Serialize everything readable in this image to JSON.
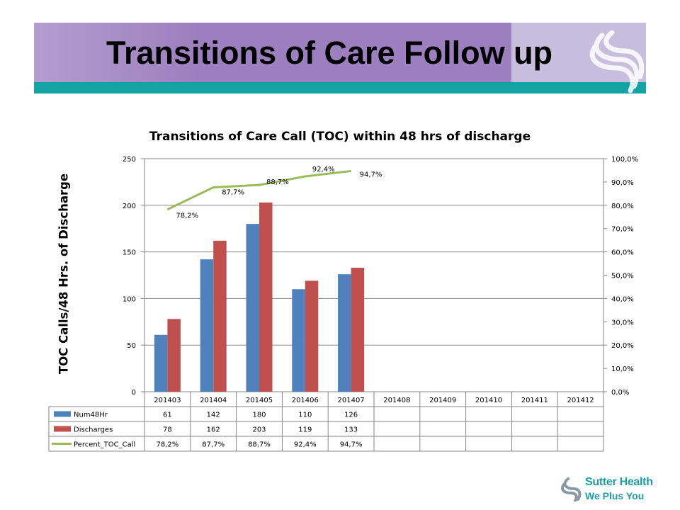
{
  "slide": {
    "title": "Transitions of Care Follow up"
  },
  "brand": {
    "name": "Sutter Health",
    "tagline": "We Plus You"
  },
  "chart_data": {
    "type": "bar",
    "title": "Transitions of Care Call (TOC) within 48 hrs of discharge",
    "ylabel": "TOC Calls/48 Hrs. of Discharge",
    "ylim": [
      0,
      250
    ],
    "y_ticks": [
      "0",
      "50",
      "100",
      "150",
      "200",
      "250"
    ],
    "y2lim": [
      0,
      100
    ],
    "y2_ticks": [
      "0,0%",
      "10,0%",
      "20,0%",
      "30,0%",
      "40,0%",
      "50,0%",
      "60,0%",
      "70,0%",
      "80,0%",
      "90,0%",
      "100,0%"
    ],
    "categories": [
      "201403",
      "201404",
      "201405",
      "201406",
      "201407",
      "201408",
      "201409",
      "201410",
      "201411",
      "201412"
    ],
    "series": [
      {
        "name": "Num48Hr",
        "type": "bar",
        "axis": "left",
        "color": "#4f81bd",
        "values": [
          61,
          142,
          180,
          110,
          126,
          null,
          null,
          null,
          null,
          null
        ],
        "labels": [
          "61",
          "142",
          "180",
          "110",
          "126",
          "",
          "",
          "",
          "",
          ""
        ]
      },
      {
        "name": "Discharges",
        "type": "bar",
        "axis": "left",
        "color": "#c0504d",
        "values": [
          78,
          162,
          203,
          119,
          133,
          null,
          null,
          null,
          null,
          null
        ],
        "labels": [
          "78",
          "162",
          "203",
          "119",
          "133",
          "",
          "",
          "",
          "",
          ""
        ]
      },
      {
        "name": "Percent_TOC_Call",
        "type": "line",
        "axis": "right",
        "color": "#9bbb59",
        "values": [
          78.2,
          87.7,
          88.7,
          92.4,
          94.7,
          null,
          null,
          null,
          null,
          null
        ],
        "labels": [
          "78,2%",
          "87,7%",
          "88,7%",
          "92,4%",
          "94,7%",
          "",
          "",
          "",
          "",
          ""
        ]
      }
    ],
    "grid": true,
    "legend": "data table"
  }
}
